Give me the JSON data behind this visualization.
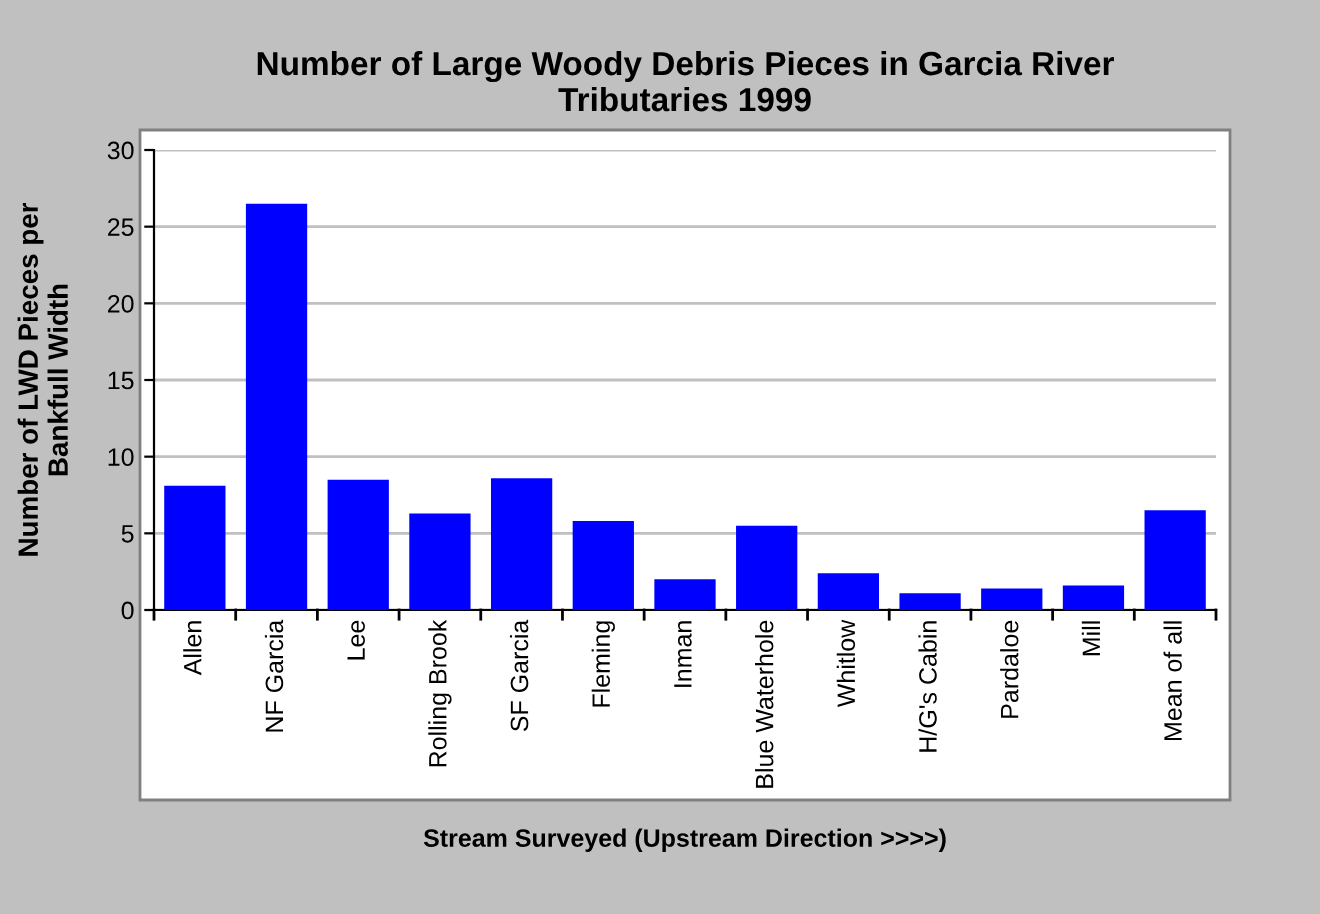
{
  "chart_data": {
    "type": "bar",
    "title": "Number of Large Woody Debris Pieces in Garcia River\nTributaries 1999",
    "xlabel": "Stream Surveyed (Upstream Direction >>>>)",
    "ylabel": "Number of LWD Pieces per\nBankfull Width",
    "categories": [
      "Allen",
      "NF Garcia",
      "Lee",
      "Rolling Brook",
      "SF Garcia",
      "Fleming",
      "Inman",
      "Blue Waterhole",
      "Whitlow",
      "H/G's Cabin",
      "Pardaloe",
      "Mill",
      "Mean of all"
    ],
    "values": [
      8.1,
      26.5,
      8.5,
      6.3,
      8.6,
      5.8,
      2.0,
      5.5,
      2.4,
      1.1,
      1.4,
      1.6,
      6.5
    ],
    "color": "#0000ff",
    "ylim": [
      0,
      30
    ],
    "yticks": [
      0,
      5,
      10,
      15,
      20,
      25,
      30
    ],
    "grid": "y"
  }
}
